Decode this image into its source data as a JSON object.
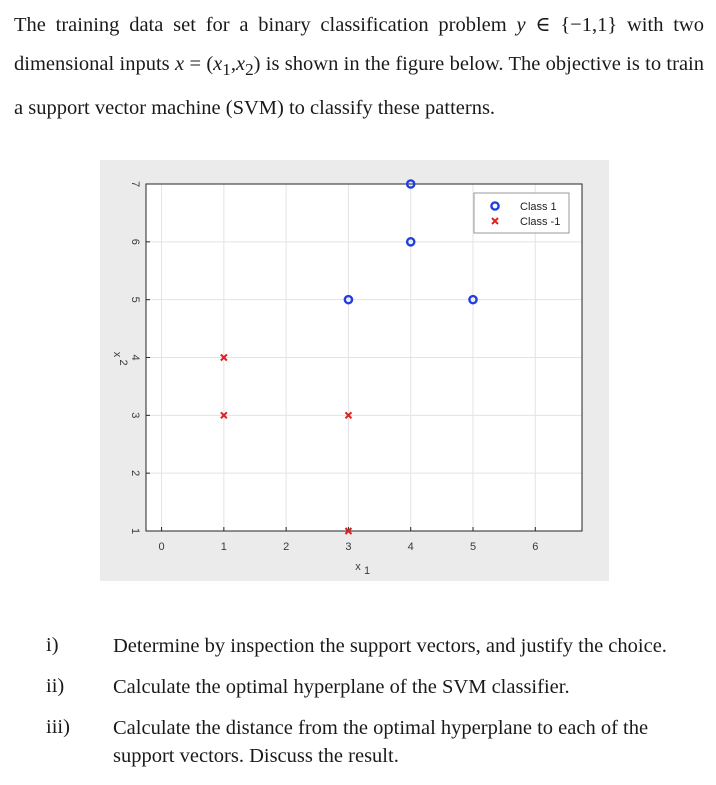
{
  "intro": {
    "part1": "The training data set for a binary classification problem ",
    "math_y": "y",
    "part2": " ∈ {−1,1} with two dimensional inputs ",
    "math_x": "x",
    "part3": " = (",
    "math_x1": "x",
    "sub1": "1",
    "comma": ",",
    "math_x2": "x",
    "sub2": "2",
    "part4": ") is shown in the figure below. The objective is to train a support vector machine (SVM) to classify these patterns."
  },
  "chart_data": {
    "type": "scatter",
    "xlabel": "x1",
    "ylabel": "x2",
    "xlim": [
      -0.25,
      6.75
    ],
    "ylim": [
      1,
      7
    ],
    "x_ticks": [
      0,
      1,
      2,
      3,
      4,
      5,
      6
    ],
    "y_ticks": [
      1,
      2,
      3,
      4,
      5,
      6,
      7
    ],
    "grid": true,
    "legend_position": "top-right",
    "series": [
      {
        "name": "Class 1",
        "marker": "circle",
        "color": "#1f3fe0",
        "points": [
          [
            4,
            7
          ],
          [
            4,
            6
          ],
          [
            3,
            5
          ],
          [
            5,
            5
          ]
        ]
      },
      {
        "name": "Class -1",
        "marker": "x",
        "color": "#e02020",
        "points": [
          [
            1,
            4
          ],
          [
            1,
            3
          ],
          [
            3,
            3
          ],
          [
            3,
            1
          ]
        ]
      }
    ]
  },
  "questions": [
    {
      "num": "i)",
      "text": "Determine by inspection the support vectors, and justify the choice."
    },
    {
      "num": "ii)",
      "text": "Calculate the optimal hyperplane of the SVM classifier."
    },
    {
      "num": "iii)",
      "text": "Calculate the distance from the optimal hyperplane to each of the support vectors. Discuss the result."
    }
  ]
}
